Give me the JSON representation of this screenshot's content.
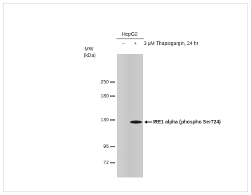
{
  "cell_line": "HepG2",
  "lanes": [
    "–",
    "+"
  ],
  "treatment": "3 μM Thapsigargin, 24 hr",
  "mw_label": [
    "MW",
    "(kDa)"
  ],
  "markers": [
    "250",
    "180",
    "130",
    "95",
    "72"
  ],
  "band_label": "IRE1 alpha (phospho  Ser724)"
}
